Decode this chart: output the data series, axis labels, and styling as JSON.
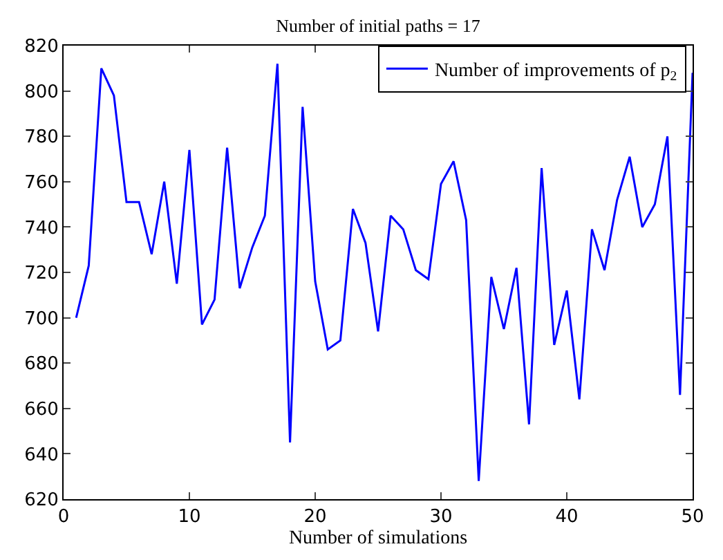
{
  "chart_data": {
    "type": "line",
    "title": "Number of initial paths = 17",
    "xlabel": "Number of simulations",
    "x": [
      1,
      2,
      3,
      4,
      5,
      6,
      7,
      8,
      9,
      10,
      11,
      12,
      13,
      14,
      15,
      16,
      17,
      18,
      19,
      20,
      21,
      22,
      23,
      24,
      25,
      26,
      27,
      28,
      29,
      30,
      31,
      32,
      33,
      34,
      35,
      36,
      37,
      38,
      39,
      40,
      41,
      42,
      43,
      44,
      45,
      46,
      47,
      48,
      49,
      50
    ],
    "series": [
      {
        "name": "Number of improvements of p$_{2}$",
        "color": "#0000ff",
        "values": [
          700,
          723,
          810,
          798,
          751,
          751,
          728,
          760,
          715,
          774,
          697,
          708,
          775,
          713,
          731,
          745,
          812,
          645,
          793,
          716,
          686,
          690,
          748,
          733,
          694,
          745,
          739,
          721,
          717,
          759,
          769,
          743,
          628,
          718,
          695,
          722,
          653,
          766,
          688,
          712,
          664,
          739,
          721,
          752,
          771,
          740,
          750,
          780,
          666,
          808
        ]
      }
    ],
    "xlim": [
      0,
      50
    ],
    "xticks": [
      0,
      10,
      20,
      30,
      40,
      50
    ],
    "ylim": [
      620,
      820
    ],
    "yticks": [
      620,
      640,
      660,
      680,
      700,
      720,
      740,
      760,
      780,
      800,
      820
    ],
    "legend": "top right",
    "marker": "none",
    "line_style": "solid"
  }
}
